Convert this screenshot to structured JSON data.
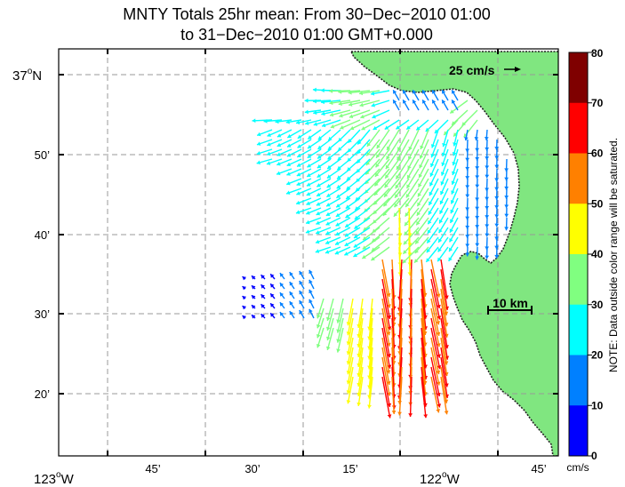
{
  "title_line1": "MNTY Totals 25hr mean: From 30−Dec−2010 01:00",
  "title_line2": "to 31−Dec−2010 01:00 GMT+0.000",
  "lat_labels": [
    "37°N",
    "50’",
    "40’",
    "30’",
    "20’"
  ],
  "lon_labels": [
    "123°W",
    "45’",
    "30’",
    "15’",
    "122°W",
    "45’"
  ],
  "scale_vector_label": "25 cm/s",
  "scale_bar_label": "10 km",
  "colorbar": {
    "ticks": [
      "80",
      "70",
      "60",
      "50",
      "40",
      "30",
      "20",
      "10",
      "0"
    ],
    "unit": "cm/s",
    "note": "NOTE: Data outside color range will be saturated.",
    "colors": [
      "#7f0000",
      "#ff0000",
      "#ff8000",
      "#ffff00",
      "#80ff80",
      "#00ffff",
      "#0080ff",
      "#0000ff"
    ]
  },
  "colors": {
    "land": "#80e680",
    "coast": "#000000",
    "grid": "#999999"
  }
}
